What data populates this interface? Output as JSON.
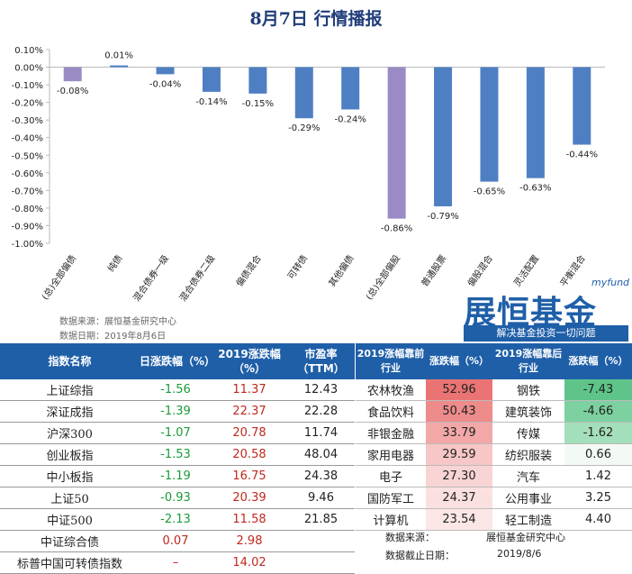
{
  "page_title": "8月7日  行情播报",
  "chart_data": {
    "type": "bar",
    "title": "",
    "categories": [
      "(总)全部偏债",
      "纯债",
      "混合债券一级",
      "混合债券二级",
      "偏债混合",
      "可转债",
      "其他偏债",
      "(总)全部偏股",
      "普通股票",
      "偏股混合",
      "灵活配置",
      "平衡混合"
    ],
    "values": [
      -0.08,
      0.01,
      -0.04,
      -0.14,
      -0.15,
      -0.29,
      -0.24,
      -0.86,
      -0.79,
      -0.65,
      -0.63,
      -0.44
    ],
    "value_labels": [
      "-0.08%",
      "0.01%",
      "-0.04%",
      "-0.14%",
      "-0.15%",
      "-0.29%",
      "-0.24%",
      "-0.86%",
      "-0.79%",
      "-0.65%",
      "-0.63%",
      "-0.44%"
    ],
    "highlight_indices": [
      0,
      7
    ],
    "yticks": [
      0.1,
      0.0,
      -0.1,
      -0.2,
      -0.3,
      -0.4,
      -0.5,
      -0.6,
      -0.7,
      -0.8,
      -0.9,
      -1.0
    ],
    "ytick_labels": [
      "0.10%",
      "0.00%",
      "-0.10%",
      "-0.20%",
      "-0.30%",
      "-0.40%",
      "-0.50%",
      "-0.60%",
      "-0.70%",
      "-0.80%",
      "-0.90%",
      "-1.00%"
    ],
    "ylim": [
      -1.0,
      0.1
    ],
    "colors": {
      "bar": "#4f7fc3",
      "highlight": "#9b8bc4"
    }
  },
  "notes": {
    "source": "数据来源：展恒基金研究中心",
    "date": "数据日期：2019年8月6日"
  },
  "logo": {
    "top": "myfund",
    "main": "展恒基金",
    "sub": "解决基金投资一切问题"
  },
  "index_table": {
    "headers": [
      "指数名称",
      "日涨跌幅（%）",
      "2019涨跌幅（%）",
      "市盈率（TTM）"
    ],
    "rows": [
      {
        "name": "上证综指",
        "daily": "-1.56",
        "ytd": "11.37",
        "pe": "12.43"
      },
      {
        "name": "深证成指",
        "daily": "-1.39",
        "ytd": "22.37",
        "pe": "22.28"
      },
      {
        "name": "沪深300",
        "daily": "-1.07",
        "ytd": "20.78",
        "pe": "11.74"
      },
      {
        "name": "创业板指",
        "daily": "-1.53",
        "ytd": "20.58",
        "pe": "48.04"
      },
      {
        "name": "中小板指",
        "daily": "-1.19",
        "ytd": "16.75",
        "pe": "24.38"
      },
      {
        "name": "上证50",
        "daily": "-0.93",
        "ytd": "20.39",
        "pe": "9.46"
      },
      {
        "name": "中证500",
        "daily": "-2.13",
        "ytd": "11.58",
        "pe": "21.85"
      },
      {
        "name": "中证综合债",
        "daily": "0.07",
        "ytd": "2.98",
        "pe": ""
      },
      {
        "name": "标普中国可转债指数",
        "daily": "–",
        "ytd": "14.02",
        "pe": ""
      }
    ]
  },
  "industry_table": {
    "headers": [
      "2019涨幅靠前行业",
      "涨跌幅（%）",
      "2019涨幅靠后行业",
      "涨跌幅（%）"
    ],
    "rows": [
      {
        "top": "农林牧渔",
        "top_val": "52.96",
        "bottom": "钢铁",
        "bottom_val": "-7.43"
      },
      {
        "top": "食品饮料",
        "top_val": "50.43",
        "bottom": "建筑装饰",
        "bottom_val": "-4.66"
      },
      {
        "top": "非银金融",
        "top_val": "33.79",
        "bottom": "传媒",
        "bottom_val": "-1.62"
      },
      {
        "top": "家用电器",
        "top_val": "29.59",
        "bottom": "纺织服装",
        "bottom_val": "0.66"
      },
      {
        "top": "电子",
        "top_val": "27.30",
        "bottom": "汽车",
        "bottom_val": "1.42"
      },
      {
        "top": "国防军工",
        "top_val": "24.37",
        "bottom": "公用事业",
        "bottom_val": "3.25"
      },
      {
        "top": "计算机",
        "top_val": "23.54",
        "bottom": "轻工制造",
        "bottom_val": "4.40"
      }
    ],
    "top_colors": [
      "#ea7474",
      "#ee8b8b",
      "#f3a8a8",
      "#f7c6c6",
      "#f9d4d4",
      "#fbe0e0",
      "#fce6e6"
    ],
    "bottom_colors": [
      "#5ec48a",
      "#7dd0a0",
      "#a3dfba",
      "#f3faf5",
      "#ffffff",
      "#ffffff",
      "#ffffff"
    ],
    "source_label": "数据来源：",
    "source_value": "展恒基金研究中心",
    "date_label": "数据截止日期：",
    "date_value": "2019/8/6"
  }
}
